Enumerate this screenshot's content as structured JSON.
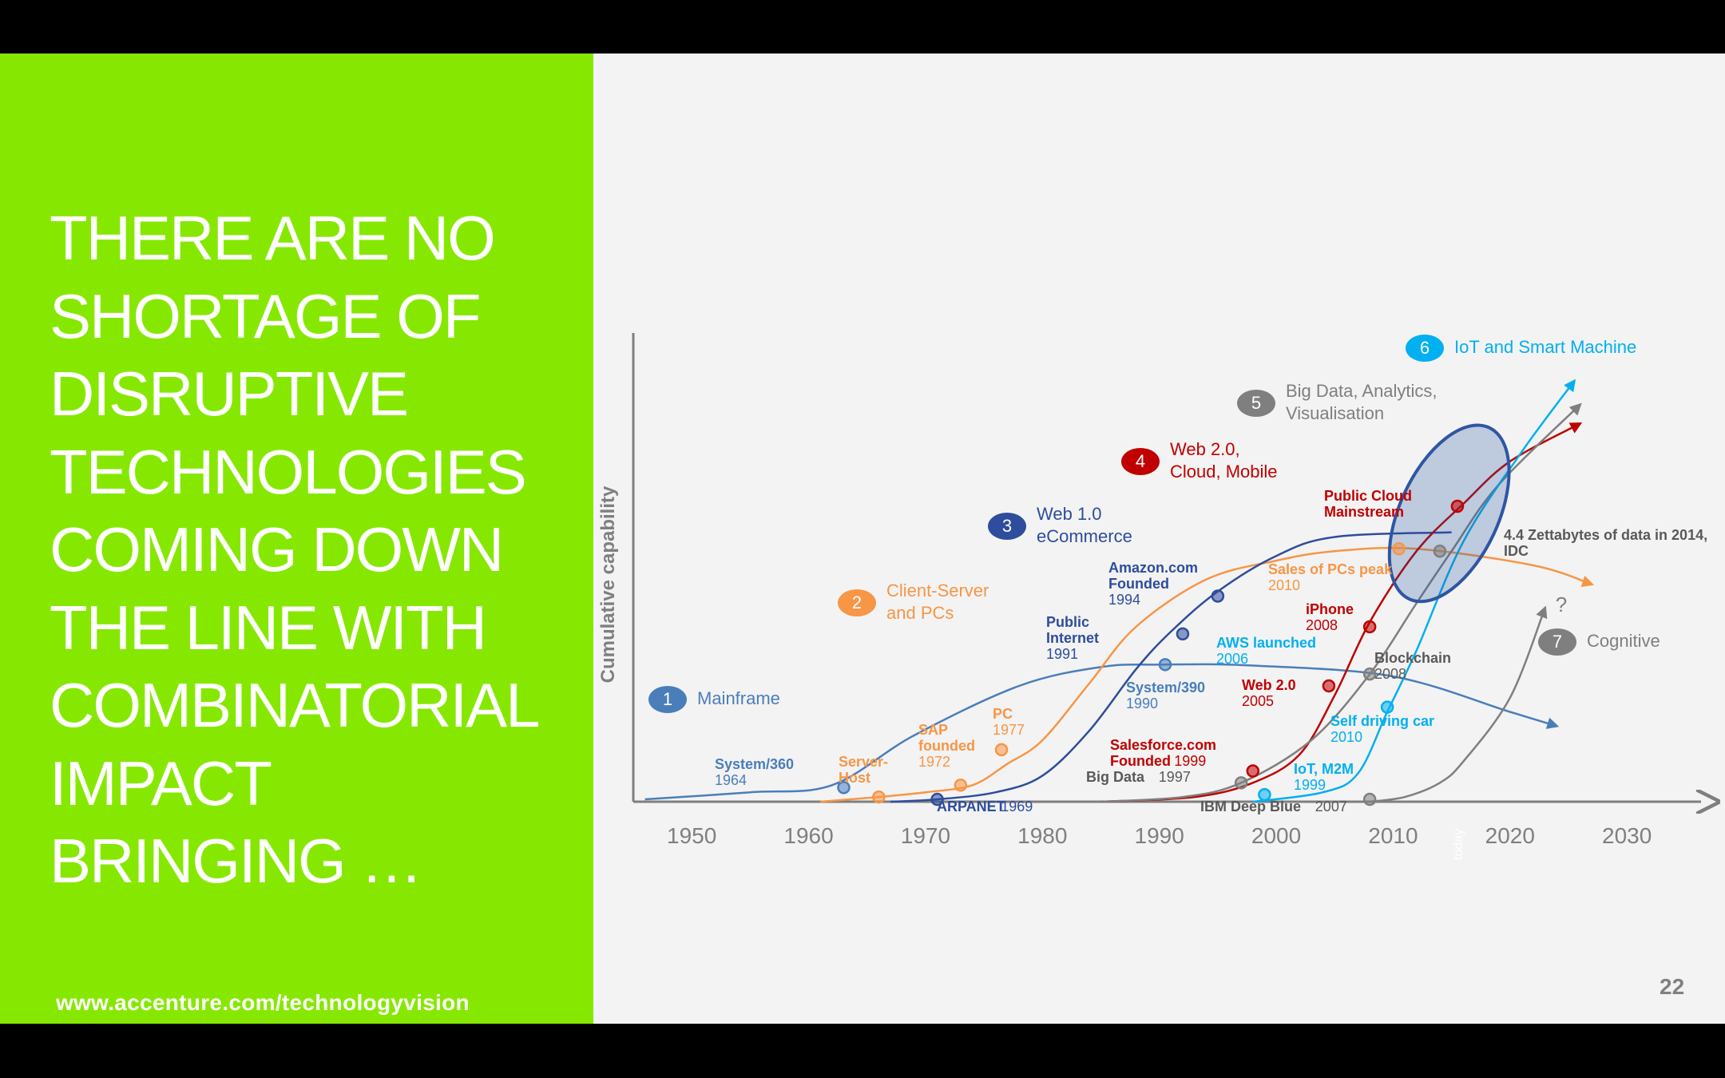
{
  "slide": {
    "headline_lines": [
      "THERE ARE NO",
      "SHORTAGE OF",
      "DISRUPTIVE",
      "TECHNOLOGIES",
      "COMING DOWN",
      "THE LINE WITH",
      "COMBINATORIAL",
      "IMPACT",
      "BRINGING …"
    ],
    "footer_url": "www.accenture.com/technologyvision",
    "page_number": "22"
  },
  "chart_data": {
    "type": "line",
    "ylabel": "Cumulative capability",
    "xlim": [
      1945,
      2036
    ],
    "ylim": [
      0,
      100
    ],
    "x_ticks": [
      "1950",
      "1960",
      "1970",
      "1980",
      "1990",
      "2000",
      "2010",
      "2020",
      "2030"
    ],
    "today_label": "today",
    "today_year": 2015.5,
    "unknown_marker": "?",
    "series": [
      {
        "num": "1",
        "name": "Mainframe",
        "color": "#4a7ebb",
        "points": [
          [
            1946,
            0.5
          ],
          [
            1955,
            2
          ],
          [
            1962,
            3.5
          ],
          [
            1969,
            14
          ],
          [
            1978,
            24.5
          ],
          [
            1985,
            28.5
          ],
          [
            1990,
            29
          ],
          [
            1998,
            28.8
          ],
          [
            2010,
            26.5
          ],
          [
            2020,
            19
          ],
          [
            2024,
            16
          ]
        ],
        "arrow": true,
        "milestones": [
          {
            "x": 1963,
            "y": 3,
            "title": "System/360",
            "year": "1964"
          },
          {
            "x": 1990.5,
            "y": 29,
            "title": "System/390",
            "year": "1990"
          }
        ]
      },
      {
        "num": "2",
        "name": "Client-Server\nand PCs",
        "color": "#f79646",
        "points": [
          [
            1961,
            0
          ],
          [
            1966,
            1
          ],
          [
            1970,
            2
          ],
          [
            1974,
            3.5
          ],
          [
            1977,
            8
          ],
          [
            1980,
            13
          ],
          [
            1984,
            25
          ],
          [
            1988,
            37
          ],
          [
            1994,
            47
          ],
          [
            2000,
            51
          ],
          [
            2005,
            53
          ],
          [
            2012,
            53.5
          ],
          [
            2022,
            50
          ],
          [
            2027,
            46
          ]
        ],
        "arrow": true,
        "milestones": [
          {
            "x": 1966,
            "y": 1,
            "title": "Server-\nHost",
            "year": ""
          },
          {
            "x": 1973,
            "y": 3.5,
            "title": "SAP\nfounded",
            "year": "1972"
          },
          {
            "x": 1976.5,
            "y": 11,
            "title": "PC",
            "year": "1977"
          },
          {
            "x": 2010.5,
            "y": 53.5,
            "title": "Sales of PCs peak",
            "year": "2010"
          }
        ]
      },
      {
        "num": "3",
        "name": "Web 1.0\neCommerce",
        "color": "#2e4d9c",
        "points": [
          [
            1967,
            0
          ],
          [
            1971,
            0.5
          ],
          [
            1976,
            2
          ],
          [
            1980,
            5.5
          ],
          [
            1984,
            15
          ],
          [
            1988,
            28
          ],
          [
            1991,
            36
          ],
          [
            1995,
            44.5
          ],
          [
            2000,
            52
          ],
          [
            2005,
            56
          ],
          [
            2015,
            57
          ]
        ],
        "arrow": false,
        "milestones": [
          {
            "x": 1971,
            "y": 0.5,
            "title": "ARPANET",
            "year": "1969"
          },
          {
            "x": 1992,
            "y": 35.5,
            "title": "Public\nInternet",
            "year": "1991"
          },
          {
            "x": 1995,
            "y": 43.5,
            "title": "Amazon.com\nFounded",
            "year": "1994"
          }
        ]
      },
      {
        "num": "4",
        "name": "Web 2.0,\nCloud, Mobile",
        "color": "#c00000",
        "points": [
          [
            1985,
            0
          ],
          [
            1993,
            1
          ],
          [
            1998,
            4
          ],
          [
            2002,
            10
          ],
          [
            2005,
            22.5
          ],
          [
            2008,
            38
          ],
          [
            2012,
            53
          ],
          [
            2016,
            63
          ],
          [
            2020,
            72
          ],
          [
            2026,
            80
          ]
        ],
        "arrow": true,
        "milestones": [
          {
            "x": 1998,
            "y": 6.5,
            "title": "Salesforce.com\nFounded",
            "year": "1999"
          },
          {
            "x": 2004.5,
            "y": 24.5,
            "title": "Web 2.0",
            "year": "2005"
          },
          {
            "x": 2008,
            "y": 37,
            "title": "iPhone",
            "year": "2008"
          },
          {
            "x": 2015.5,
            "y": 62.5,
            "title": "Public Cloud\nMainstream",
            "year": ""
          }
        ]
      },
      {
        "num": "5",
        "name": "Big Data, Analytics,\nVisualisation",
        "color": "#7f7f7f",
        "points": [
          [
            1985,
            0
          ],
          [
            1992,
            1
          ],
          [
            1997,
            4
          ],
          [
            2003,
            13
          ],
          [
            2008,
            27
          ],
          [
            2012,
            42
          ],
          [
            2015,
            53
          ],
          [
            2019,
            67
          ],
          [
            2026,
            84
          ]
        ],
        "arrow": true,
        "milestones": [
          {
            "x": 1997,
            "y": 4,
            "title": "Big Data",
            "year": "1997"
          },
          {
            "x": 2008,
            "y": 0.5,
            "title": "IBM Deep Blue",
            "year": "2007"
          },
          {
            "x": 2008,
            "y": 27,
            "title": "Blockchain",
            "year": "2008"
          },
          {
            "x": 2014,
            "y": 53,
            "title": "4.4 Zettabytes of data in 2014,\nIDC",
            "year": ""
          }
        ]
      },
      {
        "num": "6",
        "name": "IoT and Smart Machine",
        "color": "#00b0f0",
        "points": [
          [
            1998,
            0
          ],
          [
            2004,
            2
          ],
          [
            2007,
            6
          ],
          [
            2009.5,
            19
          ],
          [
            2012,
            32
          ],
          [
            2016,
            55
          ],
          [
            2021,
            74
          ],
          [
            2025.5,
            89
          ]
        ],
        "arrow": true,
        "milestones": [
          {
            "x": 1999,
            "y": 1.5,
            "title": "IoT, M2M",
            "year": "1999"
          },
          {
            "x": 2009.5,
            "y": 20,
            "title": "Self driving car",
            "year": "2010"
          },
          {
            "x": 2000,
            "y": 33,
            "title": "AWS launched",
            "year": "2006"
          }
        ]
      },
      {
        "num": "7",
        "name": "Cognitive",
        "color": "#7f7f7f",
        "points": [
          [
            2008,
            0
          ],
          [
            2011,
            1
          ],
          [
            2014,
            4
          ],
          [
            2016,
            8.5
          ],
          [
            2020,
            22
          ],
          [
            2023,
            41
          ]
        ],
        "arrow": true,
        "milestones": []
      }
    ],
    "highlight": {
      "label": "ellipse",
      "center": [
        2014.8,
        61
      ],
      "rx": 4.2,
      "ry": 20
    }
  }
}
